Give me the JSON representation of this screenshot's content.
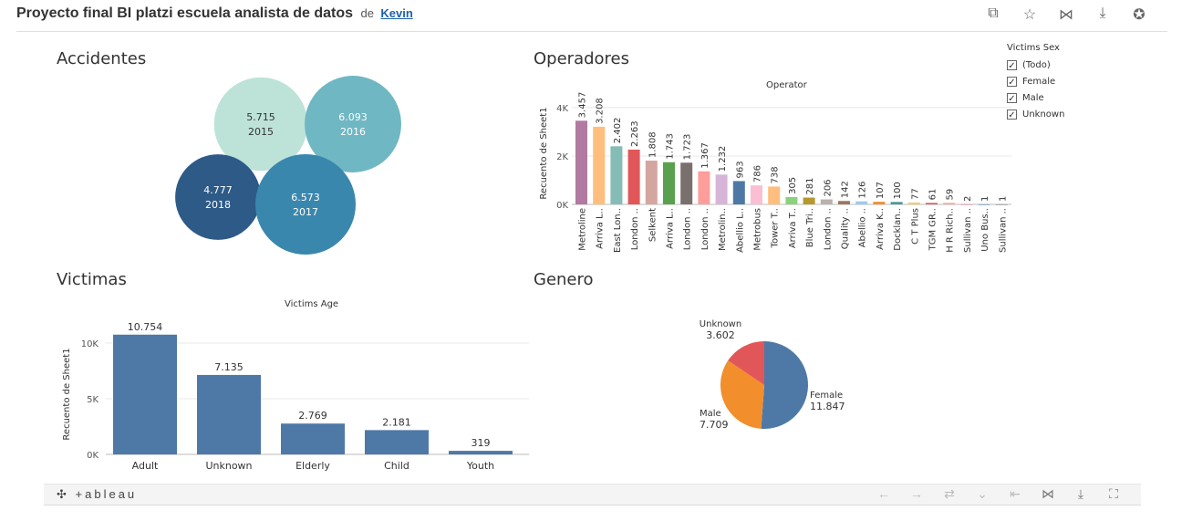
{
  "header": {
    "title": "Proyecto final BI platzi escuela analista de datos",
    "by": "de",
    "author": "Kevin",
    "icons": [
      "copy-icon",
      "star-icon",
      "share-icon",
      "download-icon",
      "badge-icon"
    ]
  },
  "sections": {
    "accidentes": "Accidentes",
    "operadores": "Operadores",
    "victimas": "Victimas",
    "genero": "Genero"
  },
  "legend": {
    "title": "Victims Sex",
    "items": [
      "(Todo)",
      "Female",
      "Male",
      "Unknown"
    ],
    "checked": [
      true,
      true,
      true,
      true
    ]
  },
  "footer": {
    "brand": "+ableau",
    "nav_icons": [
      "undo-icon",
      "redo-icon",
      "revert-icon",
      "more-icon",
      "rewind-icon",
      "share-icon",
      "download-icon",
      "fullscreen-icon"
    ]
  },
  "chart_data": [
    {
      "type": "bubble",
      "title": "Accidentes",
      "points": [
        {
          "label": "2015",
          "value": 5715,
          "display": "5.715",
          "color": "#bde3d9"
        },
        {
          "label": "2016",
          "value": 6093,
          "display": "6.093",
          "color": "#6fb7c3"
        },
        {
          "label": "2018",
          "value": 4777,
          "display": "4.777",
          "color": "#2e5a87"
        },
        {
          "label": "2017",
          "value": 6573,
          "display": "6.573",
          "color": "#3a87ad"
        }
      ]
    },
    {
      "type": "bar",
      "title": "Operadores",
      "subtitle": "Operator",
      "ylabel": "Recuento de Sheet1",
      "yticks": [
        "0K",
        "2K",
        "4K"
      ],
      "ylim": [
        0,
        4600
      ],
      "categories": [
        "Metroline",
        "Arriva L..",
        "East Lon..",
        "London ..",
        "Selkent",
        "Arriva L..",
        "London ..",
        "London ..",
        "Metrolin..",
        "Abellio L..",
        "Metrobus",
        "Tower T..",
        "Arriva T..",
        "Blue Tri..",
        "London ..",
        "Quality ..",
        "Abellio ..",
        "Arriva K..",
        "Docklan..",
        "C T Plus",
        "TGM GR..",
        "H R Rich..",
        "Sullivan ..",
        "Uno Bus..",
        "Sullivan .."
      ],
      "values": [
        3457,
        3208,
        2402,
        2263,
        1808,
        1743,
        1723,
        1367,
        1232,
        963,
        786,
        738,
        305,
        281,
        206,
        142,
        126,
        107,
        100,
        77,
        61,
        59,
        2,
        1,
        1
      ],
      "labels": [
        "3.457",
        "3.208",
        "2.402",
        "2.263",
        "1.808",
        "1.743",
        "1.723",
        "1.367",
        "1.232",
        "963",
        "786",
        "738",
        "305",
        "281",
        "206",
        "142",
        "126",
        "107",
        "100",
        "77",
        "61",
        "59",
        "2",
        "1",
        "1"
      ],
      "colors": [
        "#b07aa1",
        "#ffbe7d",
        "#86bcb6",
        "#e15759",
        "#d4a6a0",
        "#59a14f",
        "#79706e",
        "#ff9d9a",
        "#d7b5d8",
        "#4e79a7",
        "#fabfd2",
        "#ffbe7d",
        "#8cd17d",
        "#b6992d",
        "#bab0ac",
        "#9d7660",
        "#a0cbe8",
        "#f28e2b",
        "#499894",
        "#f1ce63",
        "#e15759",
        "#ff9d9a",
        "#d37295",
        "#4e79a7",
        "#79706e"
      ]
    },
    {
      "type": "bar",
      "title": "Victimas",
      "subtitle": "Victims Age",
      "ylabel": "Recuento de Sheet1",
      "yticks": [
        "0K",
        "5K",
        "10K"
      ],
      "ylim": [
        0,
        11800
      ],
      "categories": [
        "Adult",
        "Unknown",
        "Elderly",
        "Child",
        "Youth"
      ],
      "values": [
        10754,
        7135,
        2769,
        2181,
        319
      ],
      "labels": [
        "10.754",
        "7.135",
        "2.769",
        "2.181",
        "319"
      ],
      "color": "#4e79a7"
    },
    {
      "type": "pie",
      "title": "Genero",
      "slices": [
        {
          "name": "Female",
          "value": 11847,
          "display": "11.847",
          "color": "#4e79a7"
        },
        {
          "name": "Male",
          "value": 7709,
          "display": "7.709",
          "color": "#f28e2b"
        },
        {
          "name": "Unknown",
          "value": 3602,
          "display": "3.602",
          "color": "#e15759"
        }
      ]
    }
  ]
}
